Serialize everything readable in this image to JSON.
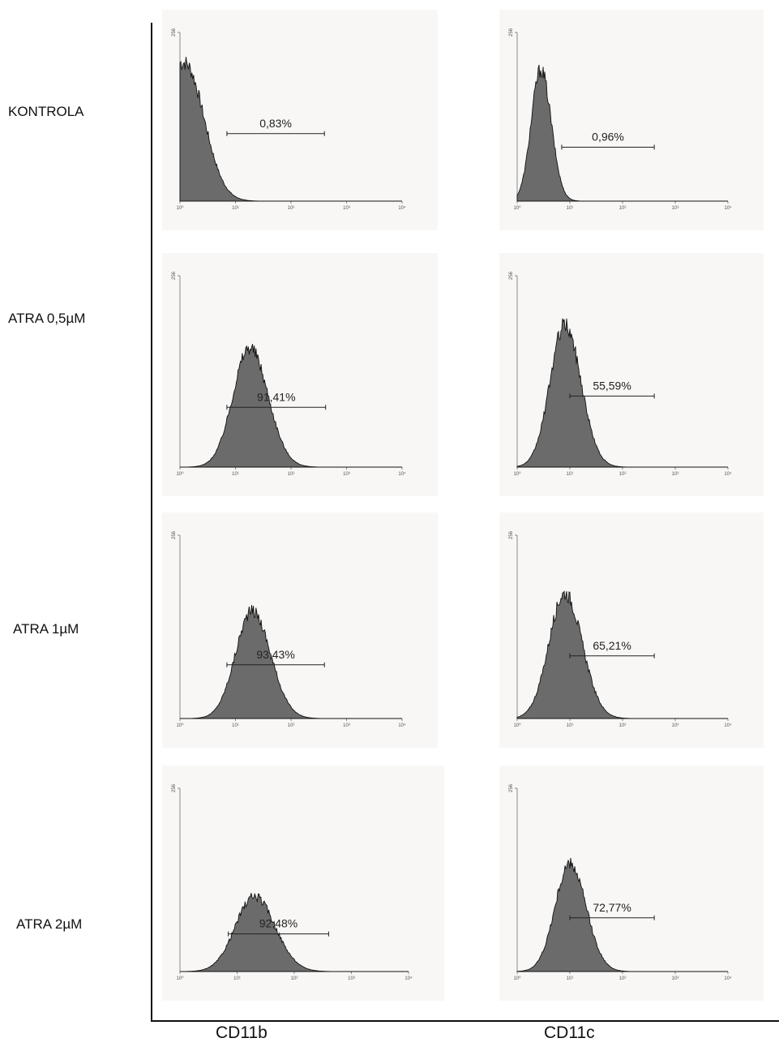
{
  "row_labels": [
    "KONTROLA",
    "ATRA 0,5µM",
    "ATRA 1µM",
    "ATRA 2µM"
  ],
  "column_labels": [
    "CD11b",
    "CD11c"
  ],
  "colors": {
    "fill": "#6b6b6b",
    "stroke": "#111111",
    "panel_bg": "#f8f7f5"
  },
  "chart_data": [
    {
      "type": "area",
      "row": "KONTROLA",
      "marker": "CD11b",
      "log_x": true,
      "xlim": [
        1,
        10000
      ],
      "ylim": [
        0,
        256
      ],
      "y_tick_label": "256",
      "x_tick_labels": [
        "10⁰",
        "10¹",
        "10²",
        "10³",
        "10⁴"
      ],
      "distribution": {
        "peak_x": 1.2,
        "peak_y": 210,
        "spread_decades": 0.32
      },
      "gate": {
        "x": [
          7,
          400
        ],
        "label": "0,83%"
      }
    },
    {
      "type": "area",
      "row": "KONTROLA",
      "marker": "CD11c",
      "log_x": true,
      "xlim": [
        1,
        10000
      ],
      "ylim": [
        0,
        256
      ],
      "y_tick_label": "256",
      "x_tick_labels": [
        "10⁰",
        "10¹",
        "10²",
        "10³",
        "10⁴"
      ],
      "distribution": {
        "peak_x": 2.8,
        "peak_y": 200,
        "spread_decades": 0.18
      },
      "gate": {
        "x": [
          7,
          400
        ],
        "label": "0,96%"
      }
    },
    {
      "type": "area",
      "row": "ATRA 0,5µM",
      "marker": "CD11b",
      "log_x": true,
      "xlim": [
        1,
        10000
      ],
      "ylim": [
        0,
        256
      ],
      "y_tick_label": "256",
      "x_tick_labels": [
        "10⁰",
        "10¹",
        "10²",
        "10³",
        "10⁴"
      ],
      "distribution": {
        "peak_x": 18,
        "peak_y": 160,
        "spread_decades": 0.3
      },
      "gate": {
        "x": [
          7,
          420
        ],
        "label": "91,41%"
      }
    },
    {
      "type": "area",
      "row": "ATRA 0,5µM",
      "marker": "CD11c",
      "log_x": true,
      "xlim": [
        1,
        10000
      ],
      "ylim": [
        0,
        256
      ],
      "y_tick_label": "256",
      "x_tick_labels": [
        "10⁰",
        "10¹",
        "10²",
        "10³",
        "10⁴"
      ],
      "distribution": {
        "peak_x": 8,
        "peak_y": 190,
        "spread_decades": 0.28
      },
      "gate": {
        "x": [
          10,
          400
        ],
        "label": "55,59%"
      }
    },
    {
      "type": "area",
      "row": "ATRA 1µM",
      "marker": "CD11b",
      "log_x": true,
      "xlim": [
        1,
        10000
      ],
      "ylim": [
        0,
        256
      ],
      "y_tick_label": "256",
      "x_tick_labels": [
        "10⁰",
        "10¹",
        "10²",
        "10³",
        "10⁴"
      ],
      "distribution": {
        "peak_x": 20,
        "peak_y": 150,
        "spread_decades": 0.3
      },
      "gate": {
        "x": [
          7,
          400
        ],
        "label": "93,43%"
      }
    },
    {
      "type": "area",
      "row": "ATRA 1µM",
      "marker": "CD11c",
      "log_x": true,
      "xlim": [
        1,
        10000
      ],
      "ylim": [
        0,
        256
      ],
      "y_tick_label": "256",
      "x_tick_labels": [
        "10⁰",
        "10¹",
        "10²",
        "10³",
        "10⁴"
      ],
      "distribution": {
        "peak_x": 8,
        "peak_y": 175,
        "spread_decades": 0.3
      },
      "gate": {
        "x": [
          10,
          400
        ],
        "label": "65,21%"
      }
    },
    {
      "type": "area",
      "row": "ATRA 2µM",
      "marker": "CD11b",
      "log_x": true,
      "xlim": [
        1,
        10000
      ],
      "ylim": [
        0,
        256
      ],
      "y_tick_label": "256",
      "x_tick_labels": [
        "10⁰",
        "10¹",
        "10²",
        "10³",
        "10⁴"
      ],
      "distribution": {
        "peak_x": 20,
        "peak_y": 105,
        "spread_decades": 0.33
      },
      "gate": {
        "x": [
          7,
          400
        ],
        "label": "92,48%"
      }
    },
    {
      "type": "area",
      "row": "ATRA 2µM",
      "marker": "CD11c",
      "log_x": true,
      "xlim": [
        1,
        10000
      ],
      "ylim": [
        0,
        256
      ],
      "y_tick_label": "256",
      "x_tick_labels": [
        "10⁰",
        "10¹",
        "10²",
        "10³",
        "10⁴"
      ],
      "distribution": {
        "peak_x": 10,
        "peak_y": 150,
        "spread_decades": 0.28
      },
      "gate": {
        "x": [
          10,
          400
        ],
        "label": "72,77%"
      }
    }
  ]
}
